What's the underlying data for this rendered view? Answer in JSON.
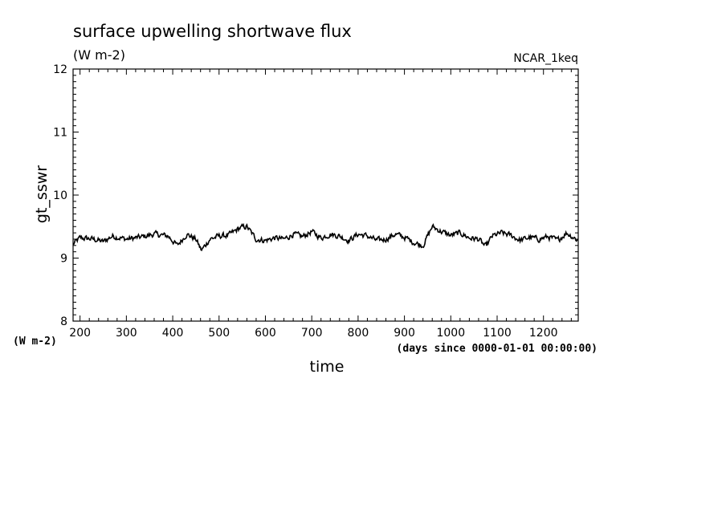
{
  "chart_data": {
    "type": "line",
    "title": "surface upwelling shortwave flux",
    "subtitle": "(W m-2)",
    "source_label": "NCAR_1keq",
    "ylabel": "gt_sswr",
    "yunit_label": "(W m-2)",
    "xlabel": "time",
    "xunit_label": "(days since 0000-01-01 00:00:00)",
    "xlim": [
      185,
      1275
    ],
    "ylim": [
      8,
      12
    ],
    "x_ticks": [
      200,
      300,
      400,
      500,
      600,
      700,
      800,
      900,
      1000,
      1100,
      1200
    ],
    "y_ticks": [
      8,
      9,
      10,
      11,
      12
    ],
    "grid": false,
    "line_color": "#000000",
    "series": [
      {
        "x": [
          185,
          1275
        ],
        "y_mean": 9.33,
        "y_noise": 0.07,
        "anchor_x": [
          185,
          200,
          230,
          250,
          270,
          300,
          330,
          360,
          390,
          410,
          430,
          450,
          462,
          480,
          500,
          520,
          545,
          560,
          580,
          600,
          620,
          640,
          660,
          680,
          700,
          720,
          740,
          760,
          780,
          800,
          820,
          840,
          860,
          880,
          900,
          920,
          940,
          960,
          980,
          1000,
          1020,
          1040,
          1060,
          1075,
          1090,
          1110,
          1130,
          1150,
          1170,
          1190,
          1210,
          1230,
          1250,
          1275
        ],
        "anchor_y": [
          9.22,
          9.32,
          9.3,
          9.26,
          9.35,
          9.3,
          9.33,
          9.38,
          9.35,
          9.2,
          9.38,
          9.3,
          9.12,
          9.3,
          9.35,
          9.36,
          9.48,
          9.5,
          9.3,
          9.28,
          9.32,
          9.3,
          9.38,
          9.34,
          9.42,
          9.32,
          9.38,
          9.35,
          9.28,
          9.38,
          9.35,
          9.28,
          9.3,
          9.38,
          9.33,
          9.25,
          9.2,
          9.5,
          9.42,
          9.36,
          9.4,
          9.32,
          9.3,
          9.18,
          9.35,
          9.4,
          9.36,
          9.28,
          9.33,
          9.3,
          9.34,
          9.28,
          9.4,
          9.28
        ]
      }
    ]
  }
}
